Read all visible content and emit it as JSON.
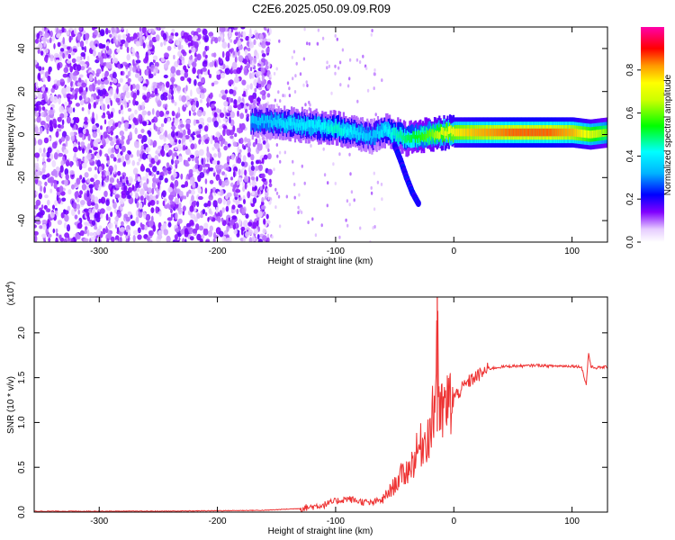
{
  "title": "C2E6.2025.050.09.09.R09",
  "chart_data": [
    {
      "type": "heatmap",
      "title": "C2E6.2025.050.09.09.R09",
      "xlabel": "Height of straight line (km)",
      "ylabel": "Frequency (Hz)",
      "xlim": [
        -355,
        130
      ],
      "ylim": [
        -50,
        50
      ],
      "x_ticks": [
        -300,
        -200,
        -100,
        0,
        100
      ],
      "x_tick_labels": [
        "-300",
        "-200",
        "-100",
        "0",
        "100"
      ],
      "y_ticks": [
        -40,
        -20,
        0,
        20,
        40
      ],
      "y_tick_labels": [
        "-40",
        "-20",
        "0",
        "20",
        "40"
      ],
      "colorbar": {
        "label": "Normalized spectral amplitude",
        "range": [
          0,
          1
        ],
        "ticks": [
          0.0,
          0.2,
          0.4,
          0.6,
          0.8
        ],
        "tick_labels": [
          "0.0",
          "0.2",
          "0.4",
          "0.6",
          "0.8"
        ]
      },
      "ridge": {
        "x": [
          -172,
          -160,
          -140,
          -120,
          -100,
          -85,
          -70,
          -60,
          -50,
          -40,
          -30,
          -20,
          -10,
          0,
          20,
          50,
          80,
          100,
          115,
          130
        ],
        "y": [
          6,
          6,
          5,
          4,
          3,
          1,
          -1,
          2,
          0,
          -2,
          -1,
          0,
          1,
          1,
          1,
          1,
          1,
          1,
          0,
          1
        ],
        "amplitude": [
          0.35,
          0.35,
          0.4,
          0.4,
          0.45,
          0.4,
          0.35,
          0.4,
          0.45,
          0.5,
          0.55,
          0.6,
          0.7,
          0.75,
          0.8,
          0.85,
          0.85,
          0.8,
          0.7,
          0.6
        ]
      },
      "branch": {
        "x": [
          -50,
          -45,
          -40,
          -35,
          -30
        ],
        "y": [
          -5,
          -12,
          -20,
          -27,
          -32
        ]
      },
      "grid": false
    },
    {
      "type": "line",
      "xlabel": "Height of straight line (km)",
      "ylabel": "SNR (10 * v/v)",
      "y_multiplier_label": "(x10",
      "y_multiplier_exp": "4",
      "xlim": [
        -355,
        130
      ],
      "ylim": [
        0,
        2.4
      ],
      "x_ticks": [
        -300,
        -200,
        -100,
        0,
        100
      ],
      "x_tick_labels": [
        "-300",
        "-200",
        "-100",
        "0",
        "100"
      ],
      "y_ticks": [
        0,
        0.5,
        1.0,
        1.5,
        2.0
      ],
      "y_tick_labels": [
        "0.0",
        "0.5",
        "1.0",
        "1.5",
        "2.0"
      ],
      "series": [
        {
          "color": "#ee3333",
          "x": [
            -355,
            -250,
            -160,
            -130,
            -110,
            -100,
            -90,
            -80,
            -70,
            -60,
            -50,
            -45,
            -40,
            -35,
            -30,
            -25,
            -20,
            -16,
            -14,
            -12,
            -10,
            -5,
            0,
            5,
            10,
            15,
            20,
            25,
            30,
            40,
            50,
            60,
            70,
            80,
            90,
            100,
            108,
            112,
            114,
            116,
            120,
            130
          ],
          "y": [
            0.01,
            0.01,
            0.02,
            0.04,
            0.08,
            0.12,
            0.15,
            0.12,
            0.1,
            0.14,
            0.3,
            0.4,
            0.45,
            0.55,
            0.7,
            0.8,
            0.9,
            1.2,
            2.3,
            1.0,
            1.1,
            1.2,
            1.28,
            1.35,
            1.42,
            1.48,
            1.52,
            1.56,
            1.6,
            1.62,
            1.63,
            1.63,
            1.64,
            1.63,
            1.63,
            1.63,
            1.62,
            1.42,
            1.78,
            1.62,
            1.61,
            1.62
          ]
        }
      ],
      "grid": false
    }
  ]
}
